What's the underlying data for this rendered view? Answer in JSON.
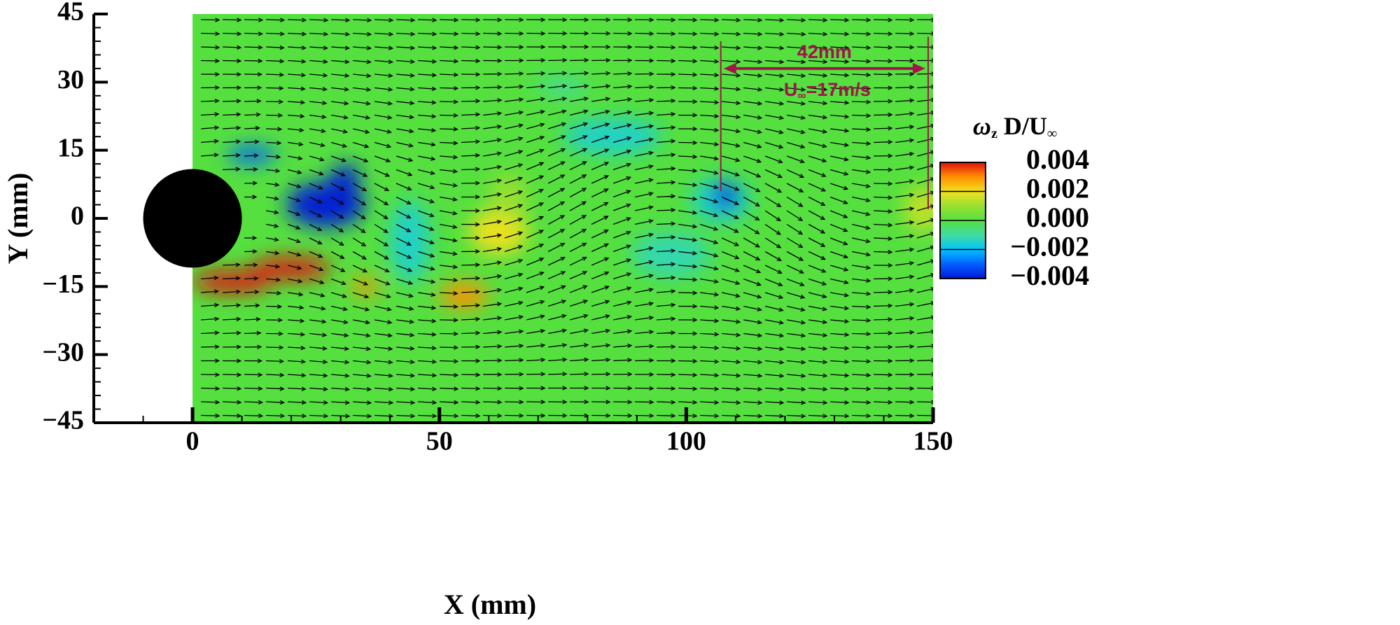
{
  "chart_data": {
    "type": "contour",
    "xlabel": "X (mm)",
    "ylabel": "Y (mm)",
    "xlim": [
      -20,
      150
    ],
    "ylim": [
      -45,
      45
    ],
    "xticks": [
      0,
      50,
      100,
      150
    ],
    "yticks": [
      {
        "value": -45,
        "label": "−45"
      },
      {
        "value": -30,
        "label": "−30"
      },
      {
        "value": -15,
        "label": "−15"
      },
      0,
      15,
      30,
      45
    ],
    "minor_divisions": 5,
    "field_xlim": [
      0,
      150
    ],
    "colorbar": {
      "title": {
        "symbol": "ω",
        "subscript": "z",
        "text": " D/U",
        "subscript2": "∞"
      },
      "clim": [
        -0.004,
        0.004
      ],
      "ticks": [
        {
          "value": -0.004,
          "label": "−0.004"
        },
        {
          "value": -0.002,
          "label": "−0.002"
        },
        {
          "value": 0,
          "label": "0.000"
        },
        0.002,
        0.004
      ],
      "colormap": [
        "#0018d8",
        "#0060ff",
        "#00c4ff",
        "#40dca0",
        "#55e040",
        "#9ae030",
        "#f2e020",
        "#ff9000",
        "#e01010"
      ]
    },
    "cylinder": {
      "x": 0,
      "y": 0,
      "diameter": 20,
      "color": "#000000"
    },
    "patches": [
      {
        "x": 27,
        "y": 3,
        "rx": 8,
        "ry": 5,
        "value": -0.004
      },
      {
        "x": 31,
        "y": 9,
        "rx": 3,
        "ry": 3,
        "value": -0.004
      },
      {
        "x": 12,
        "y": 14,
        "rx": 5,
        "ry": 2,
        "value": -0.003
      },
      {
        "x": 8,
        "y": -14,
        "rx": 8,
        "ry": 2.5,
        "value": 0.004
      },
      {
        "x": 20,
        "y": -11,
        "rx": 8,
        "ry": 2.5,
        "value": 0.004
      },
      {
        "x": 62,
        "y": -3,
        "rx": 6,
        "ry": 5,
        "value": 0.002
      },
      {
        "x": 55,
        "y": -17,
        "rx": 5,
        "ry": 3,
        "value": 0.003
      },
      {
        "x": 64,
        "y": 5,
        "rx": 4,
        "ry": 5,
        "value": 0.001
      },
      {
        "x": 44,
        "y": -5,
        "rx": 4,
        "ry": 9,
        "value": -0.0015
      },
      {
        "x": 85,
        "y": 18,
        "rx": 10,
        "ry": 4,
        "value": -0.0015
      },
      {
        "x": 75,
        "y": 29,
        "rx": 5,
        "ry": 2,
        "value": -0.001
      },
      {
        "x": 107,
        "y": 4,
        "rx": 6,
        "ry": 5,
        "value": -0.0015
      },
      {
        "x": 108,
        "y": 5,
        "rx": 2.5,
        "ry": 3,
        "value": -0.004
      },
      {
        "x": 97,
        "y": -8,
        "rx": 8,
        "ry": 5,
        "value": -0.0012
      },
      {
        "x": 148,
        "y": 2,
        "rx": 4,
        "ry": 5,
        "value": 0.0015
      },
      {
        "x": 35,
        "y": -15,
        "rx": 3,
        "ry": 2,
        "value": 0.003
      }
    ],
    "dimension": {
      "label": "42mm",
      "color": "#a3144a",
      "arrow_y": 33,
      "lines": [
        {
          "x": 107,
          "y": [
            39,
            6
          ]
        },
        {
          "x": 149,
          "y": [
            40,
            2
          ]
        }
      ]
    },
    "velocity": {
      "symbol": "U",
      "subscript": "∞",
      "text": "=17m/s"
    }
  }
}
